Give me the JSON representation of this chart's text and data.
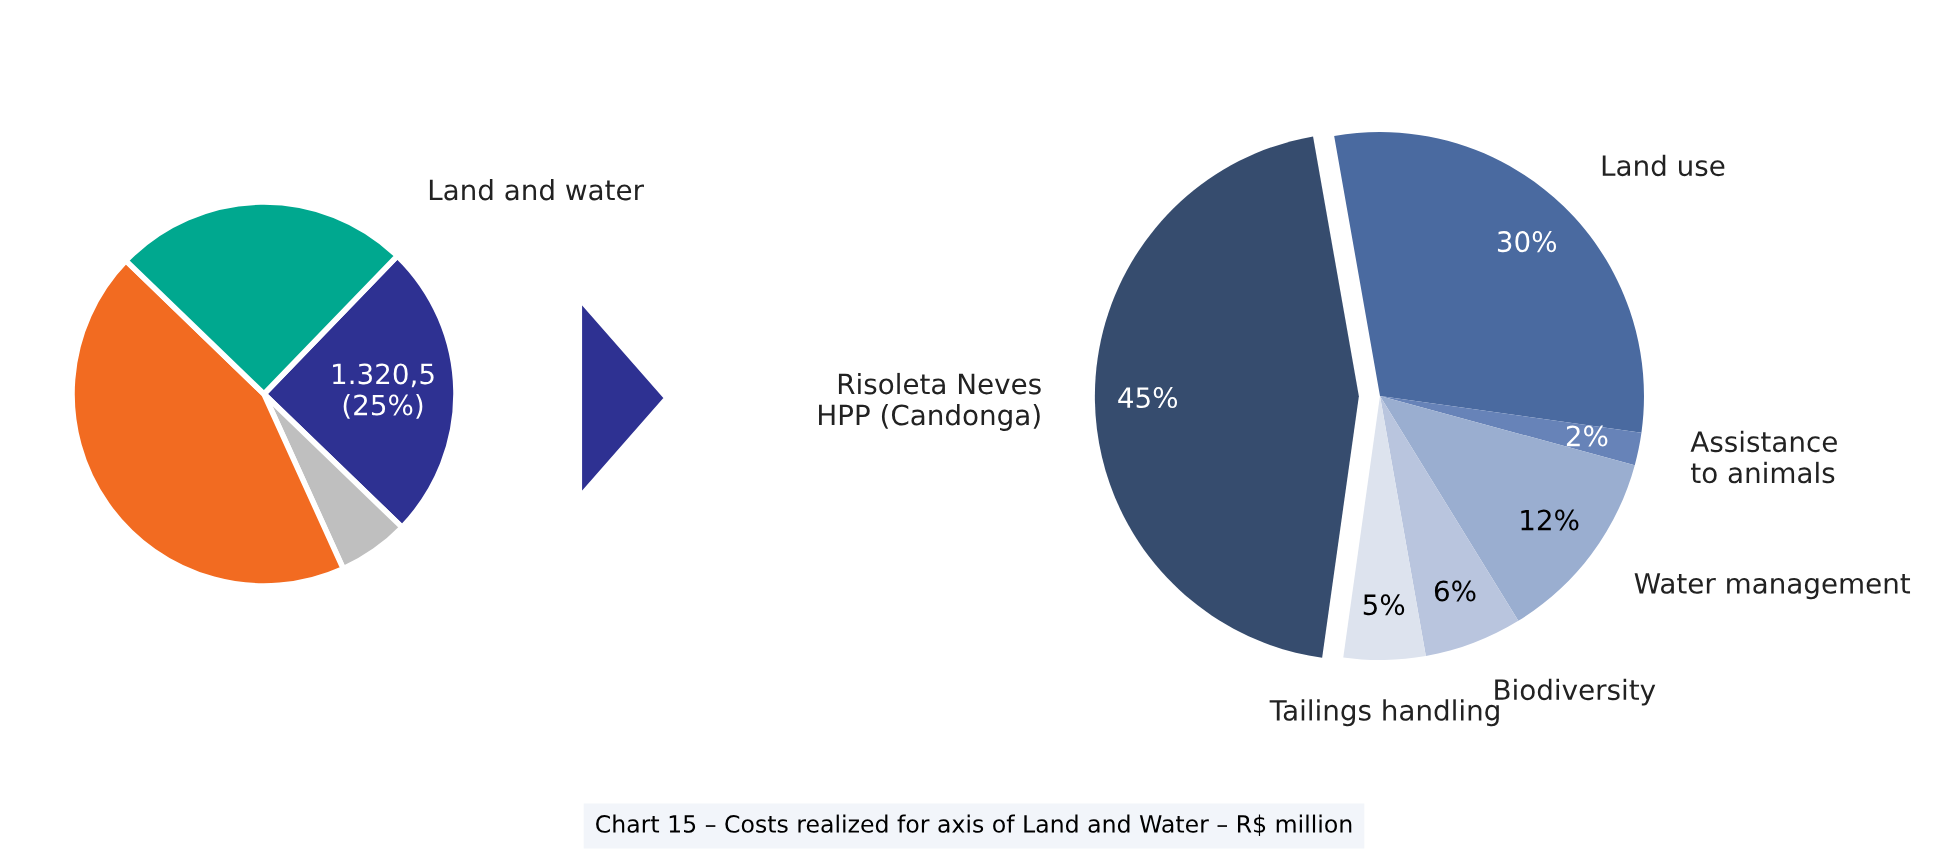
{
  "chart_data": [
    {
      "type": "pie",
      "categories": [
        "Land and water",
        null,
        null,
        null
      ],
      "values": [
        25,
        6,
        44,
        25
      ],
      "colors": [
        "#2e3192",
        "#bfbfbf",
        "#f26b21",
        "#00a88f"
      ],
      "value_labels": [
        "1.320,5\n(25%)",
        null,
        null,
        null
      ]
    },
    {
      "type": "pie",
      "categories": [
        "Land use",
        "Assistance\nto animals",
        "Water management",
        "Biodiversity",
        "Tailings handling",
        "Risoleta Neves\nHPP (Candonga)"
      ],
      "values": [
        30,
        2,
        12,
        6,
        5,
        45
      ],
      "colors": [
        "#4a6aa0",
        "#6783b8",
        "#9aaed0",
        "#b9c5de",
        "#dde3ee",
        "#364c6e"
      ],
      "value_labels": [
        "30%",
        "2%",
        "12%",
        "6%",
        "5%",
        "45%"
      ],
      "annotations": [
        "Chart 15 – Costs realized for axis of Land and Water – R$ million"
      ]
    }
  ]
}
